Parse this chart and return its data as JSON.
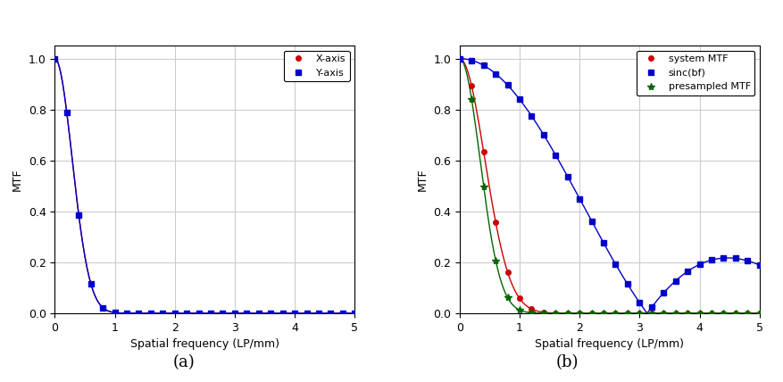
{
  "panel_a": {
    "title": "(a)",
    "xlabel": "Spatial frequency (LP/mm)",
    "ylabel": "MTF",
    "xlim": [
      0,
      5
    ],
    "ylim": [
      0,
      1.05
    ],
    "xticks": [
      0,
      1,
      2,
      3,
      4,
      5
    ],
    "yticks": [
      0,
      0.2,
      0.4,
      0.6,
      0.8,
      1
    ],
    "legend": [
      "X-axis",
      "Y-axis"
    ],
    "x_color": "#cc0000",
    "y_color": "#0000cc",
    "sigma": 0.55,
    "num_points": 26
  },
  "panel_b": {
    "title": "(b)",
    "xlabel": "Spatial frequency (LP/mm)",
    "ylabel": "MTF",
    "xlim": [
      0,
      5
    ],
    "ylim": [
      0,
      1.05
    ],
    "xticks": [
      0,
      1,
      2,
      3,
      4,
      5
    ],
    "yticks": [
      0,
      0.2,
      0.4,
      0.6,
      0.8,
      1
    ],
    "legend": [
      "system MTF",
      "sinc(bf)",
      "presampled MTF"
    ],
    "system_color": "#cc0000",
    "sinc_color": "#0000cc",
    "presampled_color": "#006600",
    "system_sigma": 0.38,
    "sinc_b": 0.32,
    "presampled_sigma": 0.47,
    "num_points": 26
  },
  "bg_color": "#ffffff",
  "grid_color": "#cccccc",
  "font_size": 9
}
